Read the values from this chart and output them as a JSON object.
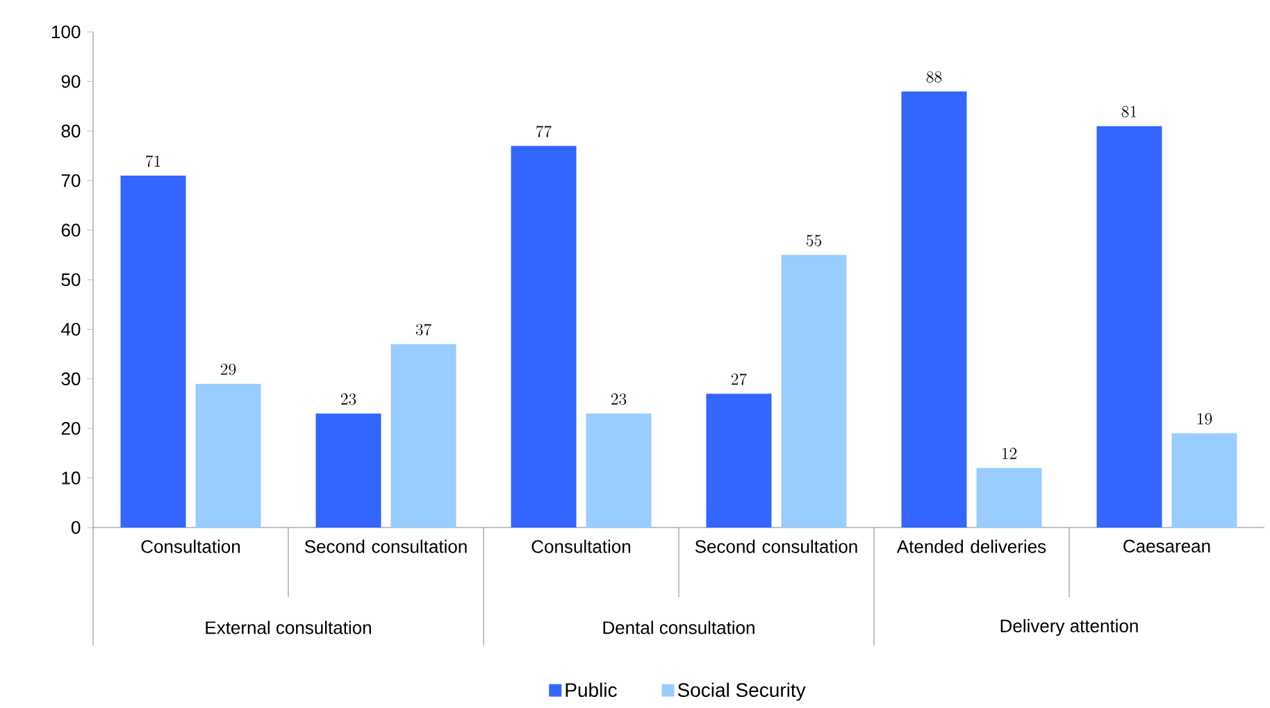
{
  "chart_data": {
    "type": "bar",
    "categories": [
      "Consultation",
      "Second consultation",
      "Consultation",
      "Second consultation",
      "Atended deliveries",
      "Caesarean"
    ],
    "annotations": [
      "External consultation",
      "Dental consultation",
      "Delivery attention"
    ],
    "series": [
      {
        "name": "Public",
        "color": "#3366ff",
        "values": [
          71,
          23,
          77,
          27,
          88,
          81
        ]
      },
      {
        "name": "Social Security",
        "color": "#99ccff",
        "values": [
          29,
          37,
          23,
          55,
          12,
          19
        ]
      }
    ],
    "ylim": [
      0,
      100
    ],
    "yticks": [
      0,
      10,
      20,
      30,
      40,
      50,
      60,
      70,
      80,
      90,
      100
    ],
    "data_labels": true,
    "legend": "bottom",
    "grid": false
  }
}
